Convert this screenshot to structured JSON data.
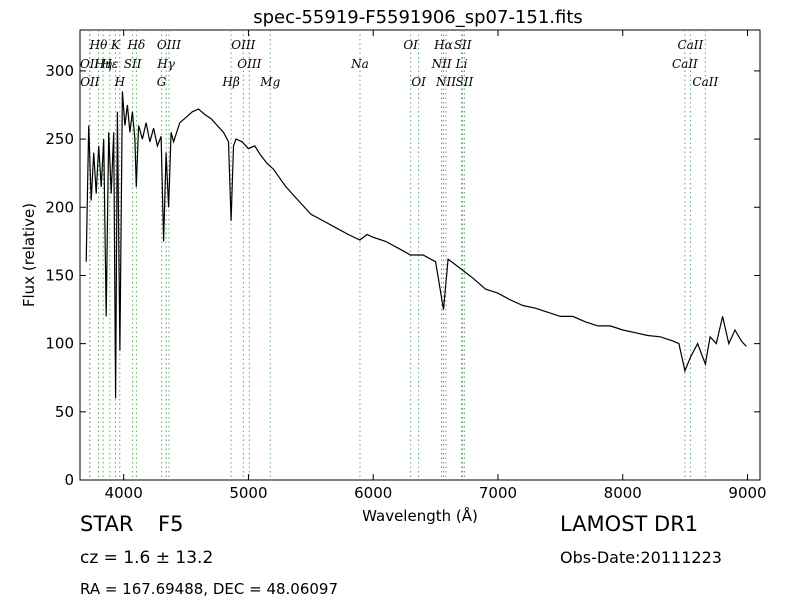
{
  "chart_data": {
    "type": "line",
    "title": "spec-55919-F5591906_sp07-151.fits",
    "xlabel": "Wavelength (Å)",
    "ylabel": "Flux (relative)",
    "xlim": [
      3650,
      9100
    ],
    "ylim": [
      0,
      330
    ],
    "xticks": [
      4000,
      5000,
      6000,
      7000,
      8000,
      9000
    ],
    "yticks": [
      0,
      50,
      100,
      150,
      200,
      250,
      300
    ],
    "grid": false,
    "line_color": "#000000",
    "series": [
      {
        "x": [
          3700,
          3720,
          3740,
          3760,
          3780,
          3800,
          3820,
          3840,
          3860,
          3880,
          3900,
          3920,
          3935,
          3950,
          3970,
          3990,
          4010,
          4030,
          4050,
          4070,
          4090,
          4101,
          4120,
          4150,
          4180,
          4210,
          4240,
          4270,
          4300,
          4320,
          4340,
          4360,
          4380,
          4400,
          4450,
          4500,
          4550,
          4600,
          4650,
          4700,
          4750,
          4800,
          4840,
          4861,
          4880,
          4900,
          4950,
          5000,
          5050,
          5100,
          5150,
          5200,
          5300,
          5400,
          5500,
          5600,
          5700,
          5800,
          5893,
          5950,
          6000,
          6100,
          6200,
          6300,
          6400,
          6500,
          6563,
          6600,
          6700,
          6800,
          6900,
          7000,
          7100,
          7200,
          7300,
          7400,
          7500,
          7600,
          7700,
          7800,
          7900,
          8000,
          8100,
          8200,
          8300,
          8400,
          8450,
          8498,
          8542,
          8600,
          8662,
          8700,
          8750,
          8800,
          8850,
          8900,
          8950,
          8990
        ],
        "y": [
          160,
          260,
          205,
          240,
          210,
          245,
          215,
          250,
          120,
          255,
          210,
          255,
          60,
          270,
          95,
          285,
          260,
          275,
          255,
          270,
          250,
          215,
          260,
          250,
          262,
          248,
          258,
          245,
          252,
          175,
          240,
          200,
          255,
          248,
          262,
          266,
          270,
          272,
          268,
          265,
          260,
          255,
          248,
          190,
          245,
          250,
          248,
          243,
          245,
          238,
          232,
          228,
          215,
          205,
          195,
          190,
          185,
          180,
          176,
          180,
          178,
          175,
          170,
          165,
          165,
          160,
          125,
          162,
          155,
          148,
          140,
          137,
          132,
          128,
          126,
          123,
          120,
          120,
          116,
          113,
          113,
          110,
          108,
          106,
          105,
          102,
          100,
          80,
          90,
          100,
          85,
          105,
          100,
          120,
          100,
          110,
          102,
          98
        ]
      }
    ],
    "lines": [
      {
        "label": "OII",
        "x": 3727,
        "row": 2
      },
      {
        "label": "OII",
        "x": 3729,
        "row": 3
      },
      {
        "label": "Hθ",
        "x": 3798,
        "row": 1
      },
      {
        "label": "Hη",
        "x": 3835,
        "row": 2
      },
      {
        "label": "K",
        "x": 3934,
        "row": 1
      },
      {
        "label": "Hε",
        "x": 3889,
        "row": 2
      },
      {
        "label": "H",
        "x": 3969,
        "row": 3
      },
      {
        "label": "SII",
        "x": 4072,
        "row": 2
      },
      {
        "label": "Hδ",
        "x": 4102,
        "row": 1
      },
      {
        "label": "OIII",
        "x": 4363,
        "row": 1
      },
      {
        "label": "Hγ",
        "x": 4340,
        "row": 2
      },
      {
        "label": "G",
        "x": 4304,
        "row": 3
      },
      {
        "label": "OIII",
        "x": 4959,
        "row": 1
      },
      {
        "label": "OIII",
        "x": 5007,
        "row": 2
      },
      {
        "label": "Hβ",
        "x": 4861,
        "row": 3
      },
      {
        "label": "Mg",
        "x": 5175,
        "row": 3
      },
      {
        "label": "Na",
        "x": 5894,
        "row": 2
      },
      {
        "label": "OI",
        "x": 6300,
        "row": 1
      },
      {
        "label": "OI",
        "x": 6364,
        "row": 3
      },
      {
        "label": "Hα",
        "x": 6563,
        "row": 1
      },
      {
        "label": "NII",
        "x": 6548,
        "row": 2
      },
      {
        "label": "NII",
        "x": 6583,
        "row": 3
      },
      {
        "label": "SII",
        "x": 6717,
        "row": 1
      },
      {
        "label": "Li",
        "x": 6708,
        "row": 2
      },
      {
        "label": "SII",
        "x": 6731,
        "row": 3
      },
      {
        "label": "CaII",
        "x": 8542,
        "row": 1
      },
      {
        "label": "CaII",
        "x": 8498,
        "row": 2
      },
      {
        "label": "CaII",
        "x": 8662,
        "row": 3
      }
    ]
  },
  "footer": {
    "object_type": "STAR",
    "object_class": "F5",
    "survey": "LAMOST DR1",
    "redshift": "cz = 1.6 ± 13.2",
    "obs_date": "Obs-Date:20111223",
    "coordinates": "RA = 167.69488, DEC = 48.06097"
  },
  "colors": {
    "line_marker": "#5aa85a",
    "spectrum": "#000000"
  }
}
